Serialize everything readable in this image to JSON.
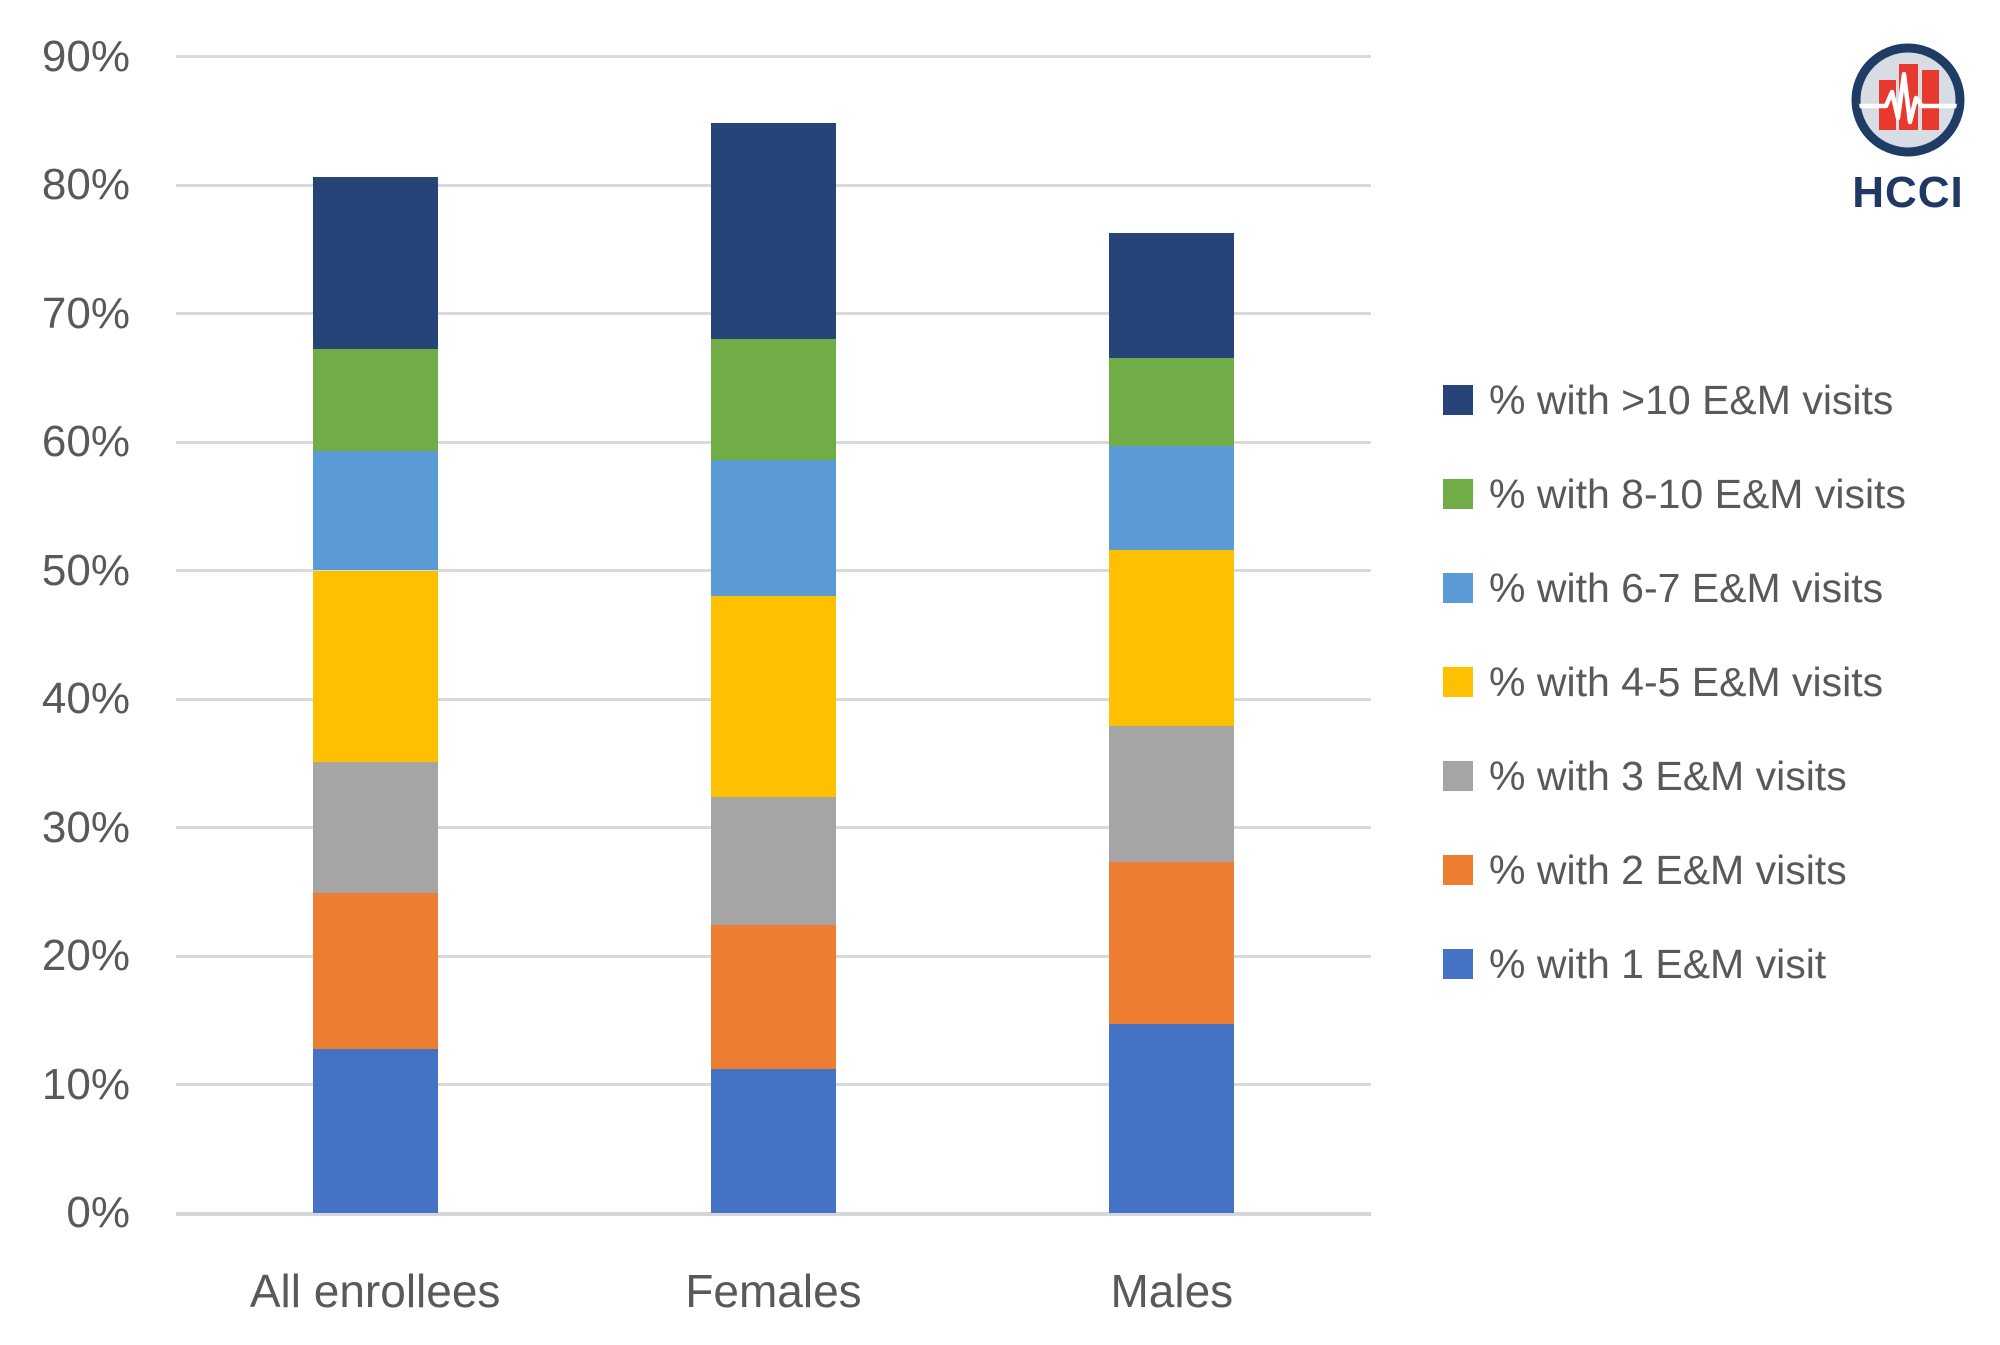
{
  "chart_data": {
    "type": "bar",
    "stacked": true,
    "title": "",
    "categories": [
      "All enrollees",
      "Females",
      "Males"
    ],
    "series": [
      {
        "name": "% with 1 E&M visit",
        "color": "#4472C4",
        "values": [
          12.8,
          11.2,
          14.7
        ]
      },
      {
        "name": "% with 2 E&M visits",
        "color": "#ED7D31",
        "values": [
          12.1,
          11.2,
          12.6
        ]
      },
      {
        "name": "% with 3 E&M visits",
        "color": "#A5A5A5",
        "values": [
          10.2,
          10.0,
          10.6
        ]
      },
      {
        "name": "% with 4-5 E&M visits",
        "color": "#FFC000",
        "values": [
          14.9,
          15.6,
          13.7
        ]
      },
      {
        "name": "% with 6-7 E&M visits",
        "color": "#5B9BD5",
        "values": [
          9.3,
          10.6,
          8.1
        ]
      },
      {
        "name": "% with 8-10 E&M visits",
        "color": "#70AD47",
        "values": [
          7.9,
          9.4,
          6.8
        ]
      },
      {
        "name": "% with >10 E&M visits",
        "color": "#264478",
        "values": [
          13.4,
          16.8,
          9.8
        ]
      }
    ],
    "stack_totals": [
      80.6,
      84.8,
      76.3
    ],
    "y_axis": {
      "min": 0,
      "max": 90,
      "step": 10,
      "unit": "%",
      "tick_labels": [
        "0%",
        "10%",
        "20%",
        "30%",
        "40%",
        "50%",
        "60%",
        "70%",
        "80%",
        "90%"
      ],
      "gridlines": true
    },
    "legend": {
      "position": "right",
      "items_top_to_bottom": [
        "% with >10 E&M visits",
        "% with 8-10 E&M visits",
        "% with 6-7 E&M visits",
        "% with 4-5 E&M visits",
        "% with 3 E&M visits",
        "% with 2 E&M visits",
        "% with 1 E&M visit"
      ]
    }
  },
  "logo": {
    "label": "HCCI",
    "ring_color": "#1e3c64",
    "fill_color": "#d7dce5",
    "bar_color": "#e8392f",
    "pulse_color": "#ffffff",
    "text_color": "#1f3864"
  },
  "colors": {
    "background": "#ffffff",
    "gridline": "#d9d9d9",
    "axis_text": "#595959"
  }
}
